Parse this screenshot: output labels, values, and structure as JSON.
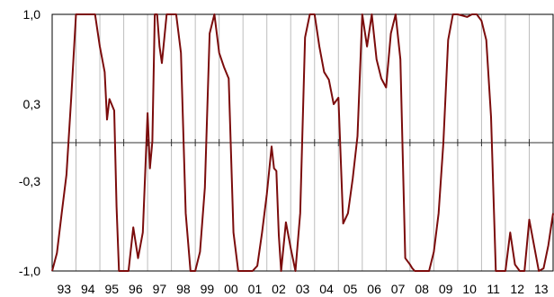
{
  "chart_data": {
    "type": "line",
    "title": "",
    "xlabel": "",
    "ylabel": "",
    "ylim": [
      -1.0,
      1.0
    ],
    "y_ticks": [
      1.0,
      0.3,
      -0.3,
      -1.0
    ],
    "y_tick_labels": [
      "1,0",
      "0,3",
      "-0,3",
      "-1,0"
    ],
    "xlim": [
      1993.0,
      2014.0
    ],
    "x_tick_labels": [
      "93",
      "94",
      "95",
      "96",
      "97",
      "98",
      "99",
      "00",
      "01",
      "02",
      "03",
      "04",
      "05",
      "06",
      "07",
      "08",
      "09",
      "10",
      "11",
      "12",
      "13"
    ],
    "grid": "vertical",
    "series": [
      {
        "color": "#7b0c0c",
        "x": [
          1993.0,
          1993.2,
          1993.4,
          1993.6,
          1993.8,
          1994.0,
          1994.2,
          1994.4,
          1994.6,
          1994.8,
          1995.0,
          1995.2,
          1995.3,
          1995.4,
          1995.6,
          1995.7,
          1995.8,
          1996.0,
          1996.2,
          1996.4,
          1996.6,
          1996.8,
          1997.0,
          1997.1,
          1997.2,
          1997.3,
          1997.4,
          1997.5,
          1997.6,
          1997.8,
          1998.0,
          1998.2,
          1998.4,
          1998.6,
          1998.8,
          1999.0,
          1999.2,
          1999.4,
          1999.6,
          1999.8,
          2000.0,
          2000.2,
          2000.4,
          2000.6,
          2000.8,
          2001.0,
          2001.2,
          2001.4,
          2001.6,
          2001.8,
          2002.0,
          2002.2,
          2002.3,
          2002.4,
          2002.5,
          2002.6,
          2002.8,
          2003.0,
          2003.2,
          2003.4,
          2003.6,
          2003.8,
          2004.0,
          2004.2,
          2004.4,
          2004.6,
          2004.8,
          2005.0,
          2005.2,
          2005.4,
          2005.6,
          2005.8,
          2006.0,
          2006.2,
          2006.4,
          2006.6,
          2006.8,
          2007.0,
          2007.2,
          2007.4,
          2007.6,
          2007.8,
          2008.0,
          2008.1,
          2008.2,
          2008.3,
          2008.5,
          2008.8,
          2009.0,
          2009.2,
          2009.4,
          2009.6,
          2009.8,
          2010.0,
          2010.2,
          2010.4,
          2010.6,
          2010.8,
          2011.0,
          2011.2,
          2011.4,
          2011.6,
          2011.8,
          2012.0,
          2012.2,
          2012.4,
          2012.6,
          2012.8,
          2013.0,
          2013.2,
          2013.4,
          2013.6,
          2013.8,
          2014.0
        ],
        "y": [
          -1.0,
          -0.86,
          -0.55,
          -0.25,
          0.35,
          1.0,
          1.0,
          1.0,
          1.0,
          1.0,
          0.75,
          0.55,
          0.18,
          0.34,
          0.25,
          -0.5,
          -1.0,
          -1.0,
          -1.0,
          -0.66,
          -0.9,
          -0.7,
          0.23,
          -0.2,
          0.01,
          1.0,
          1.0,
          0.75,
          0.62,
          1.0,
          1.0,
          1.0,
          0.7,
          -0.55,
          -1.0,
          -1.0,
          -0.85,
          -0.35,
          0.85,
          1.0,
          0.7,
          0.59,
          0.5,
          -0.7,
          -1.0,
          -1.0,
          -1.0,
          -1.0,
          -0.96,
          -0.7,
          -0.4,
          -0.03,
          -0.2,
          -0.22,
          -0.72,
          -1.0,
          -0.62,
          -0.82,
          -1.0,
          -0.55,
          0.82,
          1.0,
          1.0,
          0.75,
          0.55,
          0.49,
          0.3,
          0.35,
          -0.63,
          -0.55,
          -0.28,
          0.05,
          1.0,
          0.75,
          1.0,
          0.65,
          0.5,
          0.43,
          0.85,
          1.0,
          0.65,
          -0.9,
          -0.95,
          -0.98,
          -1.0,
          -1.0,
          -1.0,
          -1.0,
          -0.85,
          -0.55,
          0.0,
          0.8,
          1.0,
          1.0,
          0.99,
          0.98,
          1.0,
          1.0,
          0.95,
          0.8,
          0.2,
          -1.0,
          -1.0,
          -1.0,
          -0.7,
          -0.95,
          -1.0,
          -1.0,
          -0.6,
          -0.8,
          -1.0,
          -0.98,
          -0.8,
          -0.55
        ]
      }
    ]
  }
}
